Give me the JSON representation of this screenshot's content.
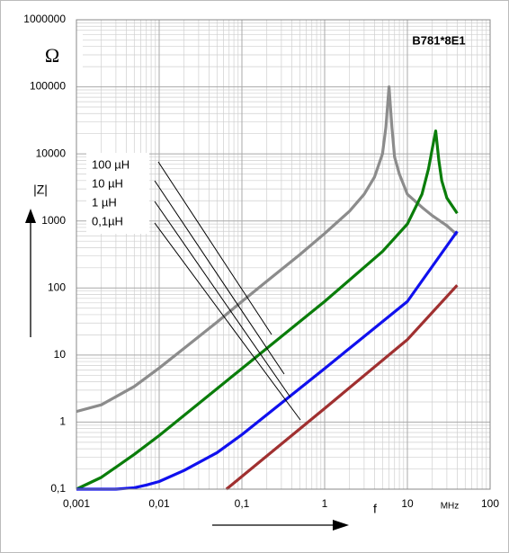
{
  "chart_data": {
    "type": "line",
    "title": "B781*8E1",
    "unit_label": "Ω",
    "y_label": "|Z|",
    "x_label": "f",
    "x_unit": "MHz",
    "log_x": true,
    "log_y": true,
    "grid": true,
    "minor_grid": true,
    "xlim": [
      0.001,
      100
    ],
    "ylim": [
      0.1,
      1000000
    ],
    "xticks": [
      {
        "value": 0.001,
        "label": "0,001"
      },
      {
        "value": 0.01,
        "label": "0,01"
      },
      {
        "value": 0.1,
        "label": "0,1"
      },
      1,
      10,
      100
    ],
    "yticks": [
      {
        "value": 0.1,
        "label": "0,1"
      },
      1,
      10,
      100,
      1000,
      10000,
      100000,
      1000000
    ],
    "series": [
      {
        "name": "100 µH",
        "color": "#8c8c8c",
        "x": [
          0.001,
          0.002,
          0.005,
          0.01,
          0.02,
          0.05,
          0.1,
          0.2,
          0.5,
          1,
          2,
          3,
          4,
          5,
          5.5,
          6,
          6.5,
          7,
          8,
          10,
          15,
          20,
          30,
          40
        ],
        "values": [
          1.44,
          1.81,
          3.4,
          6.4,
          12.6,
          31,
          63,
          126,
          314,
          650,
          1400,
          2500,
          4500,
          10000,
          25000,
          100000,
          25000,
          9000,
          5000,
          2500,
          1600,
          1200,
          850,
          620
        ]
      },
      {
        "name": "10 µH",
        "color": "#0a7d0a",
        "x": [
          0.001,
          0.002,
          0.005,
          0.01,
          0.1,
          1,
          5,
          10,
          15,
          18,
          20,
          22,
          24,
          26,
          30,
          40
        ],
        "values": [
          0.1,
          0.15,
          0.33,
          0.63,
          6.3,
          63,
          350,
          900,
          2500,
          6000,
          12000,
          22000,
          8000,
          4000,
          2200,
          1300
        ]
      },
      {
        "name": "1 µH",
        "color": "#1010ee",
        "x": [
          0.001,
          0.003,
          0.005,
          0.007,
          0.01,
          0.02,
          0.05,
          0.1,
          1,
          10,
          40
        ],
        "values": [
          0.1,
          0.1,
          0.105,
          0.115,
          0.13,
          0.19,
          0.35,
          0.65,
          6.3,
          63,
          700
        ]
      },
      {
        "name": "0,1µH",
        "color": "#a03030",
        "x": [
          0.065,
          1,
          10,
          40
        ],
        "values": [
          0.1,
          1.6,
          17,
          110
        ]
      }
    ]
  }
}
